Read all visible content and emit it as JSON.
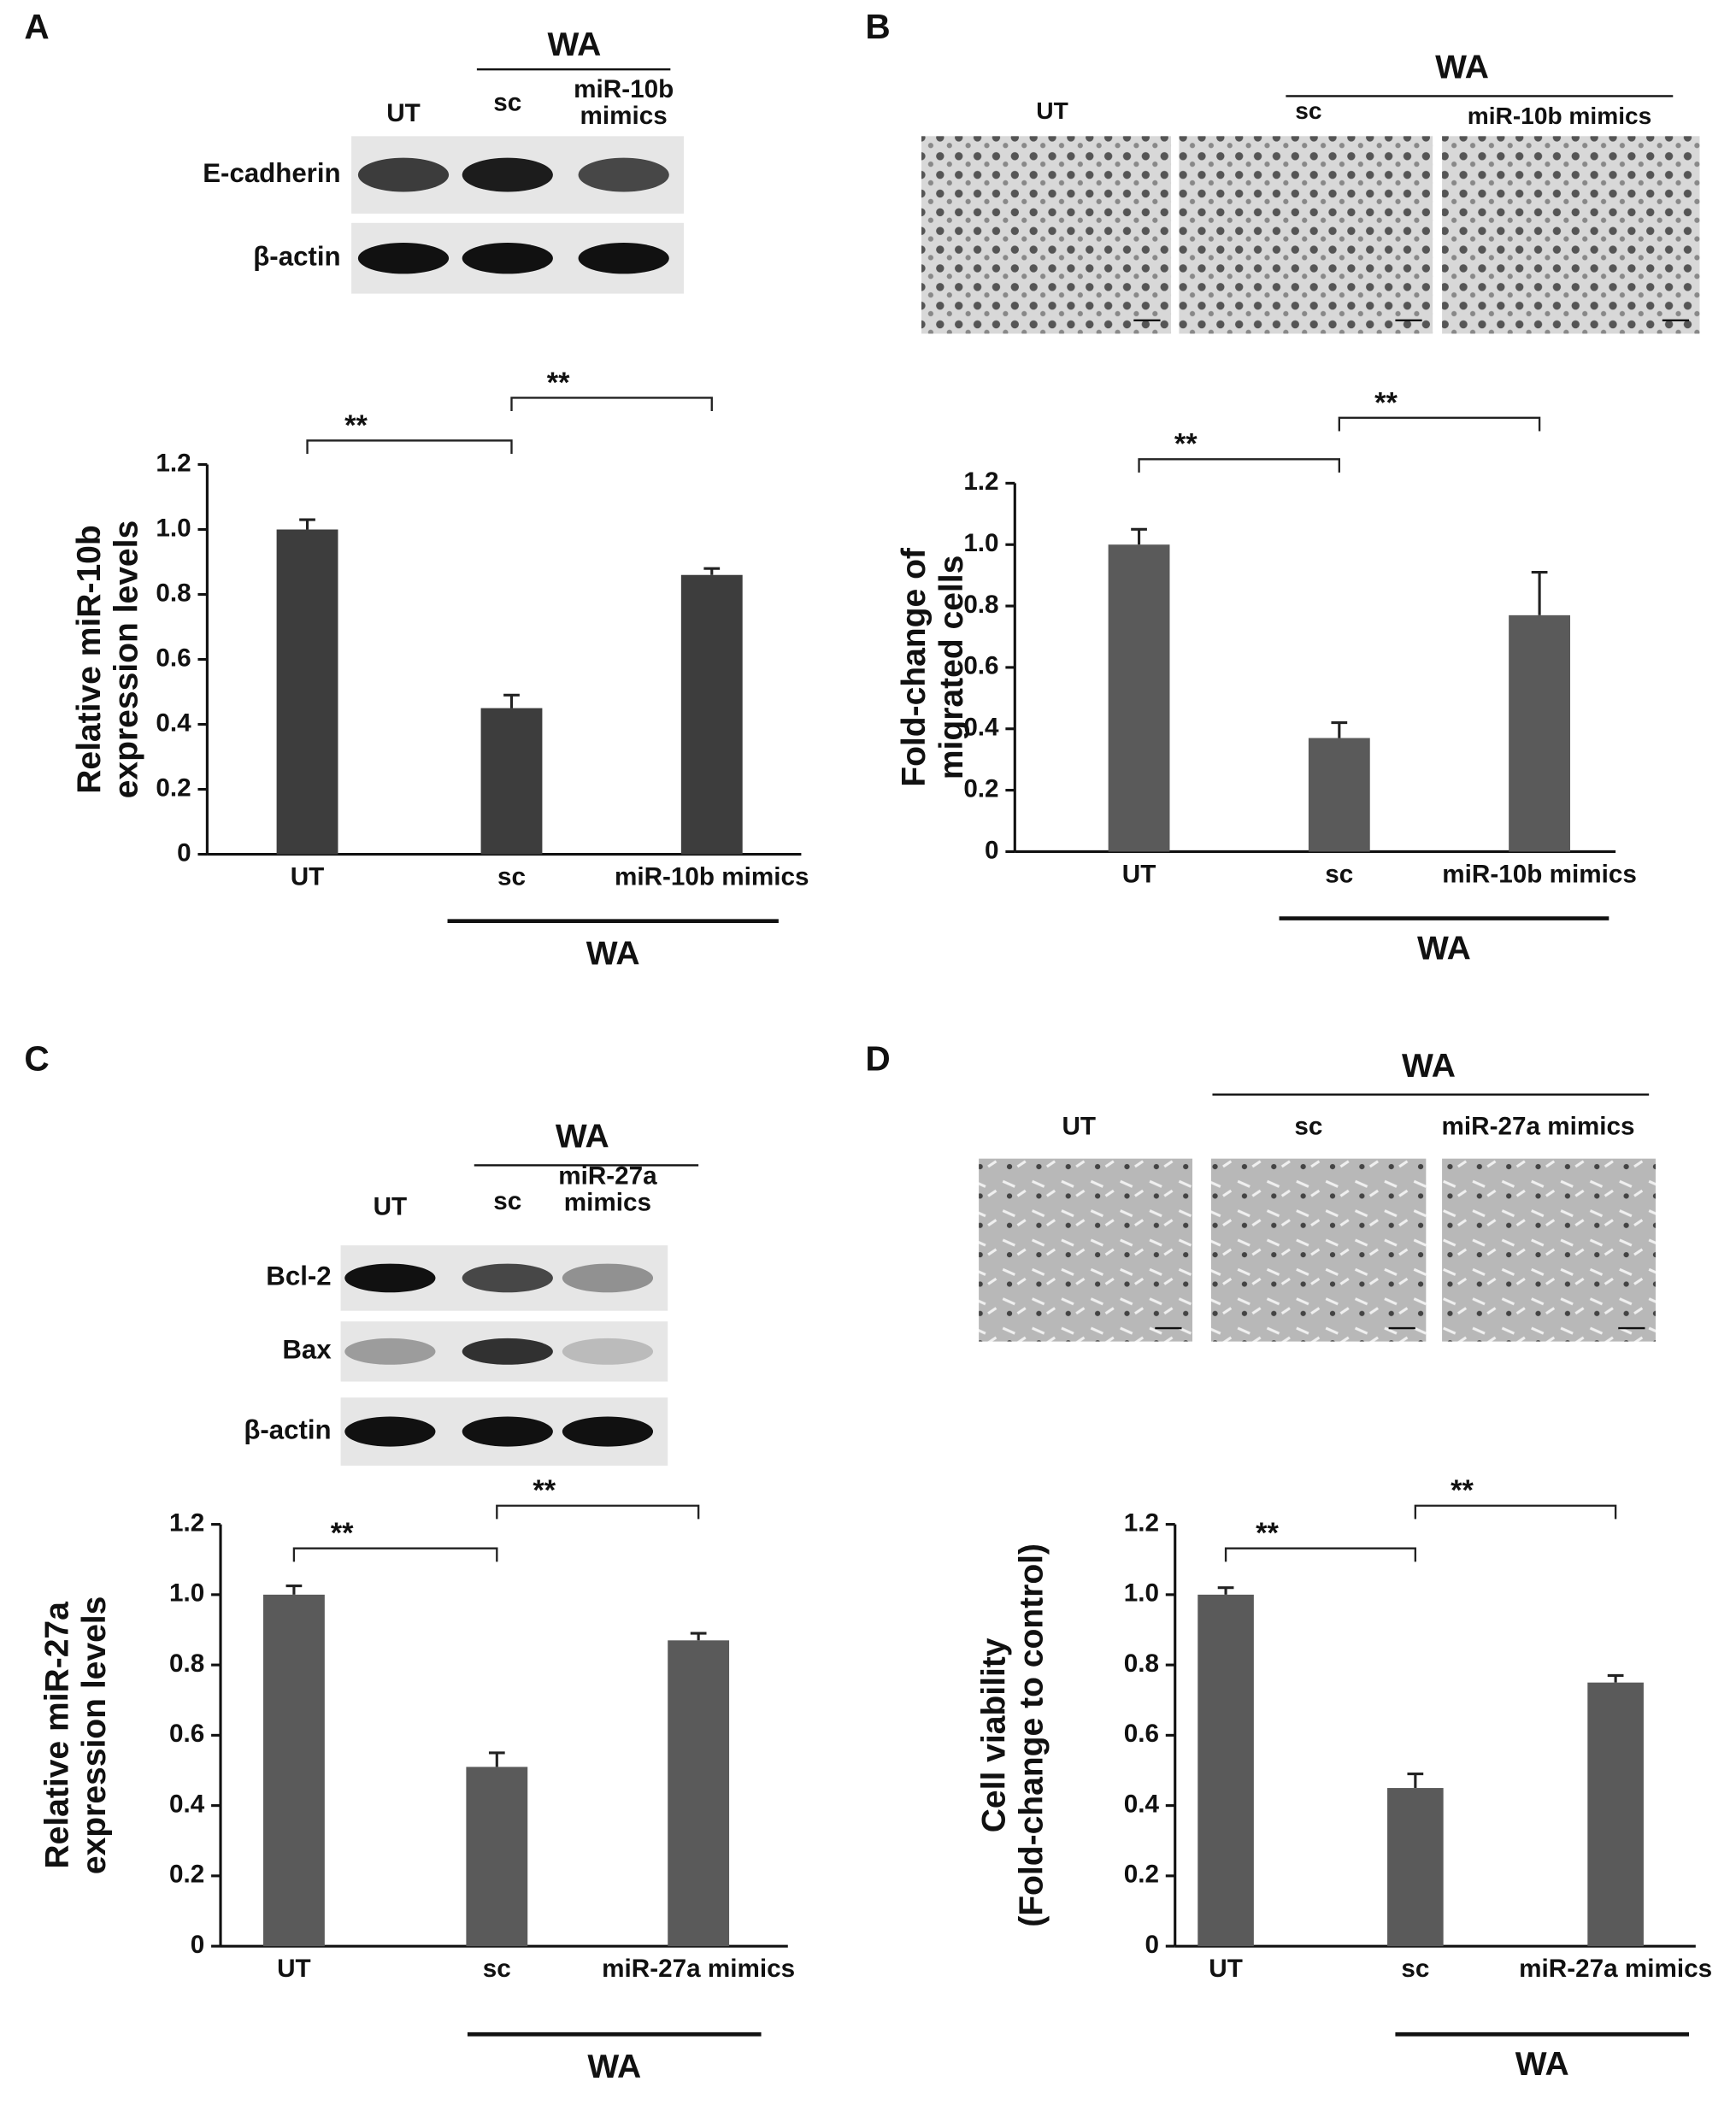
{
  "chart_data": [
    {
      "type": "bar",
      "panel": "A",
      "header": {
        "group": "WA",
        "labels": [
          "UT",
          "sc",
          "miR-10b mimics"
        ]
      },
      "blot_rows": [
        "E-cadherin",
        "β-actin"
      ],
      "categories": [
        "UT",
        "sc",
        "miR-10b mimics"
      ],
      "values": [
        1.0,
        0.45,
        0.86
      ],
      "errors": [
        0.03,
        0.04,
        0.02
      ],
      "color": "#3d3d3d",
      "ylabel": [
        "Relative miR-10b",
        "expression levels"
      ],
      "ylim": [
        0,
        1.2
      ],
      "yticks": [
        0,
        0.2,
        0.4,
        0.6,
        0.8,
        {
          "value": 1,
          "label": "1.0"
        },
        1.2
      ],
      "annotations": [
        "**",
        "**"
      ],
      "group_label": "WA"
    },
    {
      "type": "bar",
      "panel": "B",
      "header": {
        "group": "WA",
        "labels": [
          "UT",
          "sc",
          "miR-10b mimics"
        ]
      },
      "categories": [
        "UT",
        "sc",
        "miR-10b mimics"
      ],
      "values": [
        1.0,
        0.37,
        0.77
      ],
      "errors": [
        0.05,
        0.05,
        0.14
      ],
      "color": "#5a5a5a",
      "ylabel": [
        "Fold-change of",
        "migrated cells"
      ],
      "ylim": [
        0,
        1.2
      ],
      "yticks": [
        0,
        0.2,
        0.4,
        0.6,
        0.8,
        {
          "value": 1,
          "label": "1.0"
        },
        1.2
      ],
      "annotations": [
        "**",
        "**"
      ],
      "group_label": "WA"
    },
    {
      "type": "bar",
      "panel": "C",
      "header": {
        "group": "WA",
        "labels": [
          "UT",
          "sc",
          "miR-27a mimics"
        ]
      },
      "blot_rows": [
        "Bcl-2",
        "Bax",
        "β-actin"
      ],
      "categories": [
        "UT",
        "sc",
        "miR-27a mimics"
      ],
      "values": [
        1.0,
        0.51,
        0.87
      ],
      "errors": [
        0.025,
        0.04,
        0.02
      ],
      "color": "#5a5a5a",
      "ylabel": [
        "Relative miR-27a",
        "expression levels"
      ],
      "ylim": [
        0,
        1.2
      ],
      "yticks": [
        0,
        0.2,
        0.4,
        0.6,
        0.8,
        {
          "value": 1,
          "label": "1.0"
        },
        1.2
      ],
      "annotations": [
        "**",
        "**"
      ],
      "group_label": "WA"
    },
    {
      "type": "bar",
      "panel": "D",
      "header": {
        "group": "WA",
        "labels": [
          "UT",
          "sc",
          "miR-27a mimics"
        ]
      },
      "categories": [
        "UT",
        "sc",
        "miR-27a mimics"
      ],
      "values": [
        1.0,
        0.45,
        0.75
      ],
      "errors": [
        0.02,
        0.04,
        0.02
      ],
      "color": "#5a5a5a",
      "ylabel": [
        "Cell viability",
        "(Fold-change to control)"
      ],
      "ylim": [
        0,
        1.2
      ],
      "yticks": [
        0,
        0.2,
        0.4,
        0.6,
        0.8,
        {
          "value": 1,
          "label": "1.0"
        },
        1.2
      ],
      "annotations": [
        "**",
        "**"
      ],
      "group_label": "WA"
    }
  ]
}
